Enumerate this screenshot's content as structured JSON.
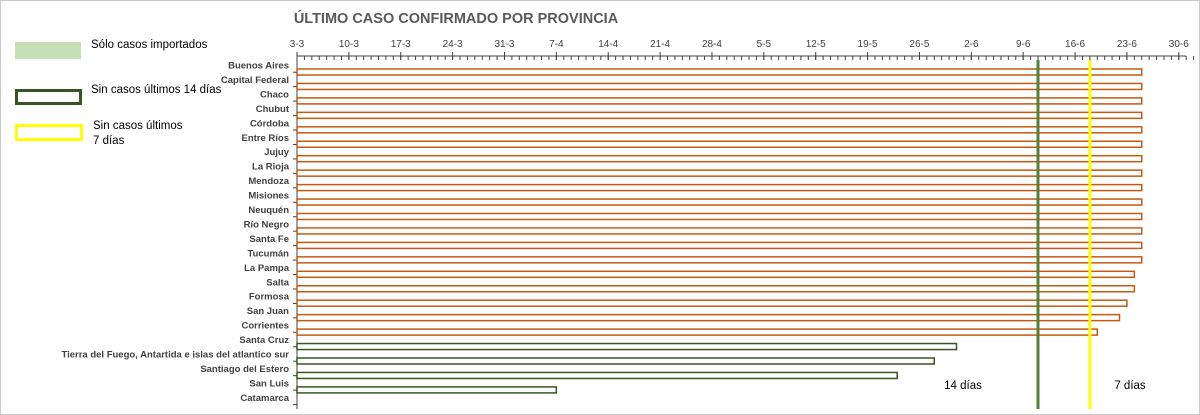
{
  "chart_data": {
    "type": "bar",
    "orientation": "horizontal",
    "title": "ÚLTIMO CASO CONFIRMADO POR PROVINCIA",
    "xlabel": "",
    "ylabel": "",
    "x_axis_position": "top",
    "xlim": [
      "2020-03-03",
      "2020-07-02"
    ],
    "x_ticks": [
      "3-3",
      "10-3",
      "17-3",
      "24-3",
      "31-3",
      "7-4",
      "14-4",
      "21-4",
      "28-4",
      "5-5",
      "12-5",
      "19-5",
      "26-5",
      "2-6",
      "9-6",
      "16-6",
      "23-6",
      "30-6"
    ],
    "categories": [
      "Buenos Aires",
      "Capital Federal",
      "Chaco",
      "Chubut",
      "Córdoba",
      "Entre Ríos",
      "Jujuy",
      "La Rioja",
      "Mendoza",
      "Misiones",
      "Neuquén",
      "Río Negro",
      "Santa Fe",
      "Tucumán",
      "La Pampa",
      "Salta",
      "Formosa",
      "San Juan",
      "Corrientes",
      "Santa Cruz",
      "Tierra del Fuego, Antartida e islas del atlantico sur",
      "Santiago del Estero",
      "San Luis",
      "Catamarca"
    ],
    "values": [
      "2020-06-25",
      "2020-06-25",
      "2020-06-25",
      "2020-06-25",
      "2020-06-25",
      "2020-06-25",
      "2020-06-25",
      "2020-06-25",
      "2020-06-25",
      "2020-06-25",
      "2020-06-25",
      "2020-06-25",
      "2020-06-25",
      "2020-06-25",
      "2020-06-24",
      "2020-06-24",
      "2020-06-23",
      "2020-06-22",
      "2020-06-19",
      "2020-05-31",
      "2020-05-28",
      "2020-05-23",
      "2020-04-07",
      null
    ],
    "bar_status": [
      "recent",
      "recent",
      "recent",
      "recent",
      "recent",
      "recent",
      "recent",
      "recent",
      "recent",
      "recent",
      "recent",
      "recent",
      "recent",
      "recent",
      "recent",
      "recent",
      "recent",
      "recent",
      "recent",
      "14d",
      "14d",
      "14d",
      "14d",
      "14d"
    ],
    "reference_lines": [
      {
        "label": "14 días",
        "x": "2020-06-11",
        "color": "#548235"
      },
      {
        "label": "7 días",
        "x": "2020-06-18",
        "color": "#ffff00"
      }
    ],
    "legend": [
      {
        "label": "Sólo casos importados",
        "style": "fill",
        "color": "#c5e0b4"
      },
      {
        "label": "Sin casos últimos 14 días",
        "style": "outline",
        "color": "#375623"
      },
      {
        "label": "Sin casos últimos\n7 días",
        "style": "outline",
        "color": "#ffff00"
      }
    ],
    "legend_position": "left",
    "colors": {
      "recent_bar": "#c55a11",
      "old_bar": "#375623"
    },
    "grid": false
  }
}
